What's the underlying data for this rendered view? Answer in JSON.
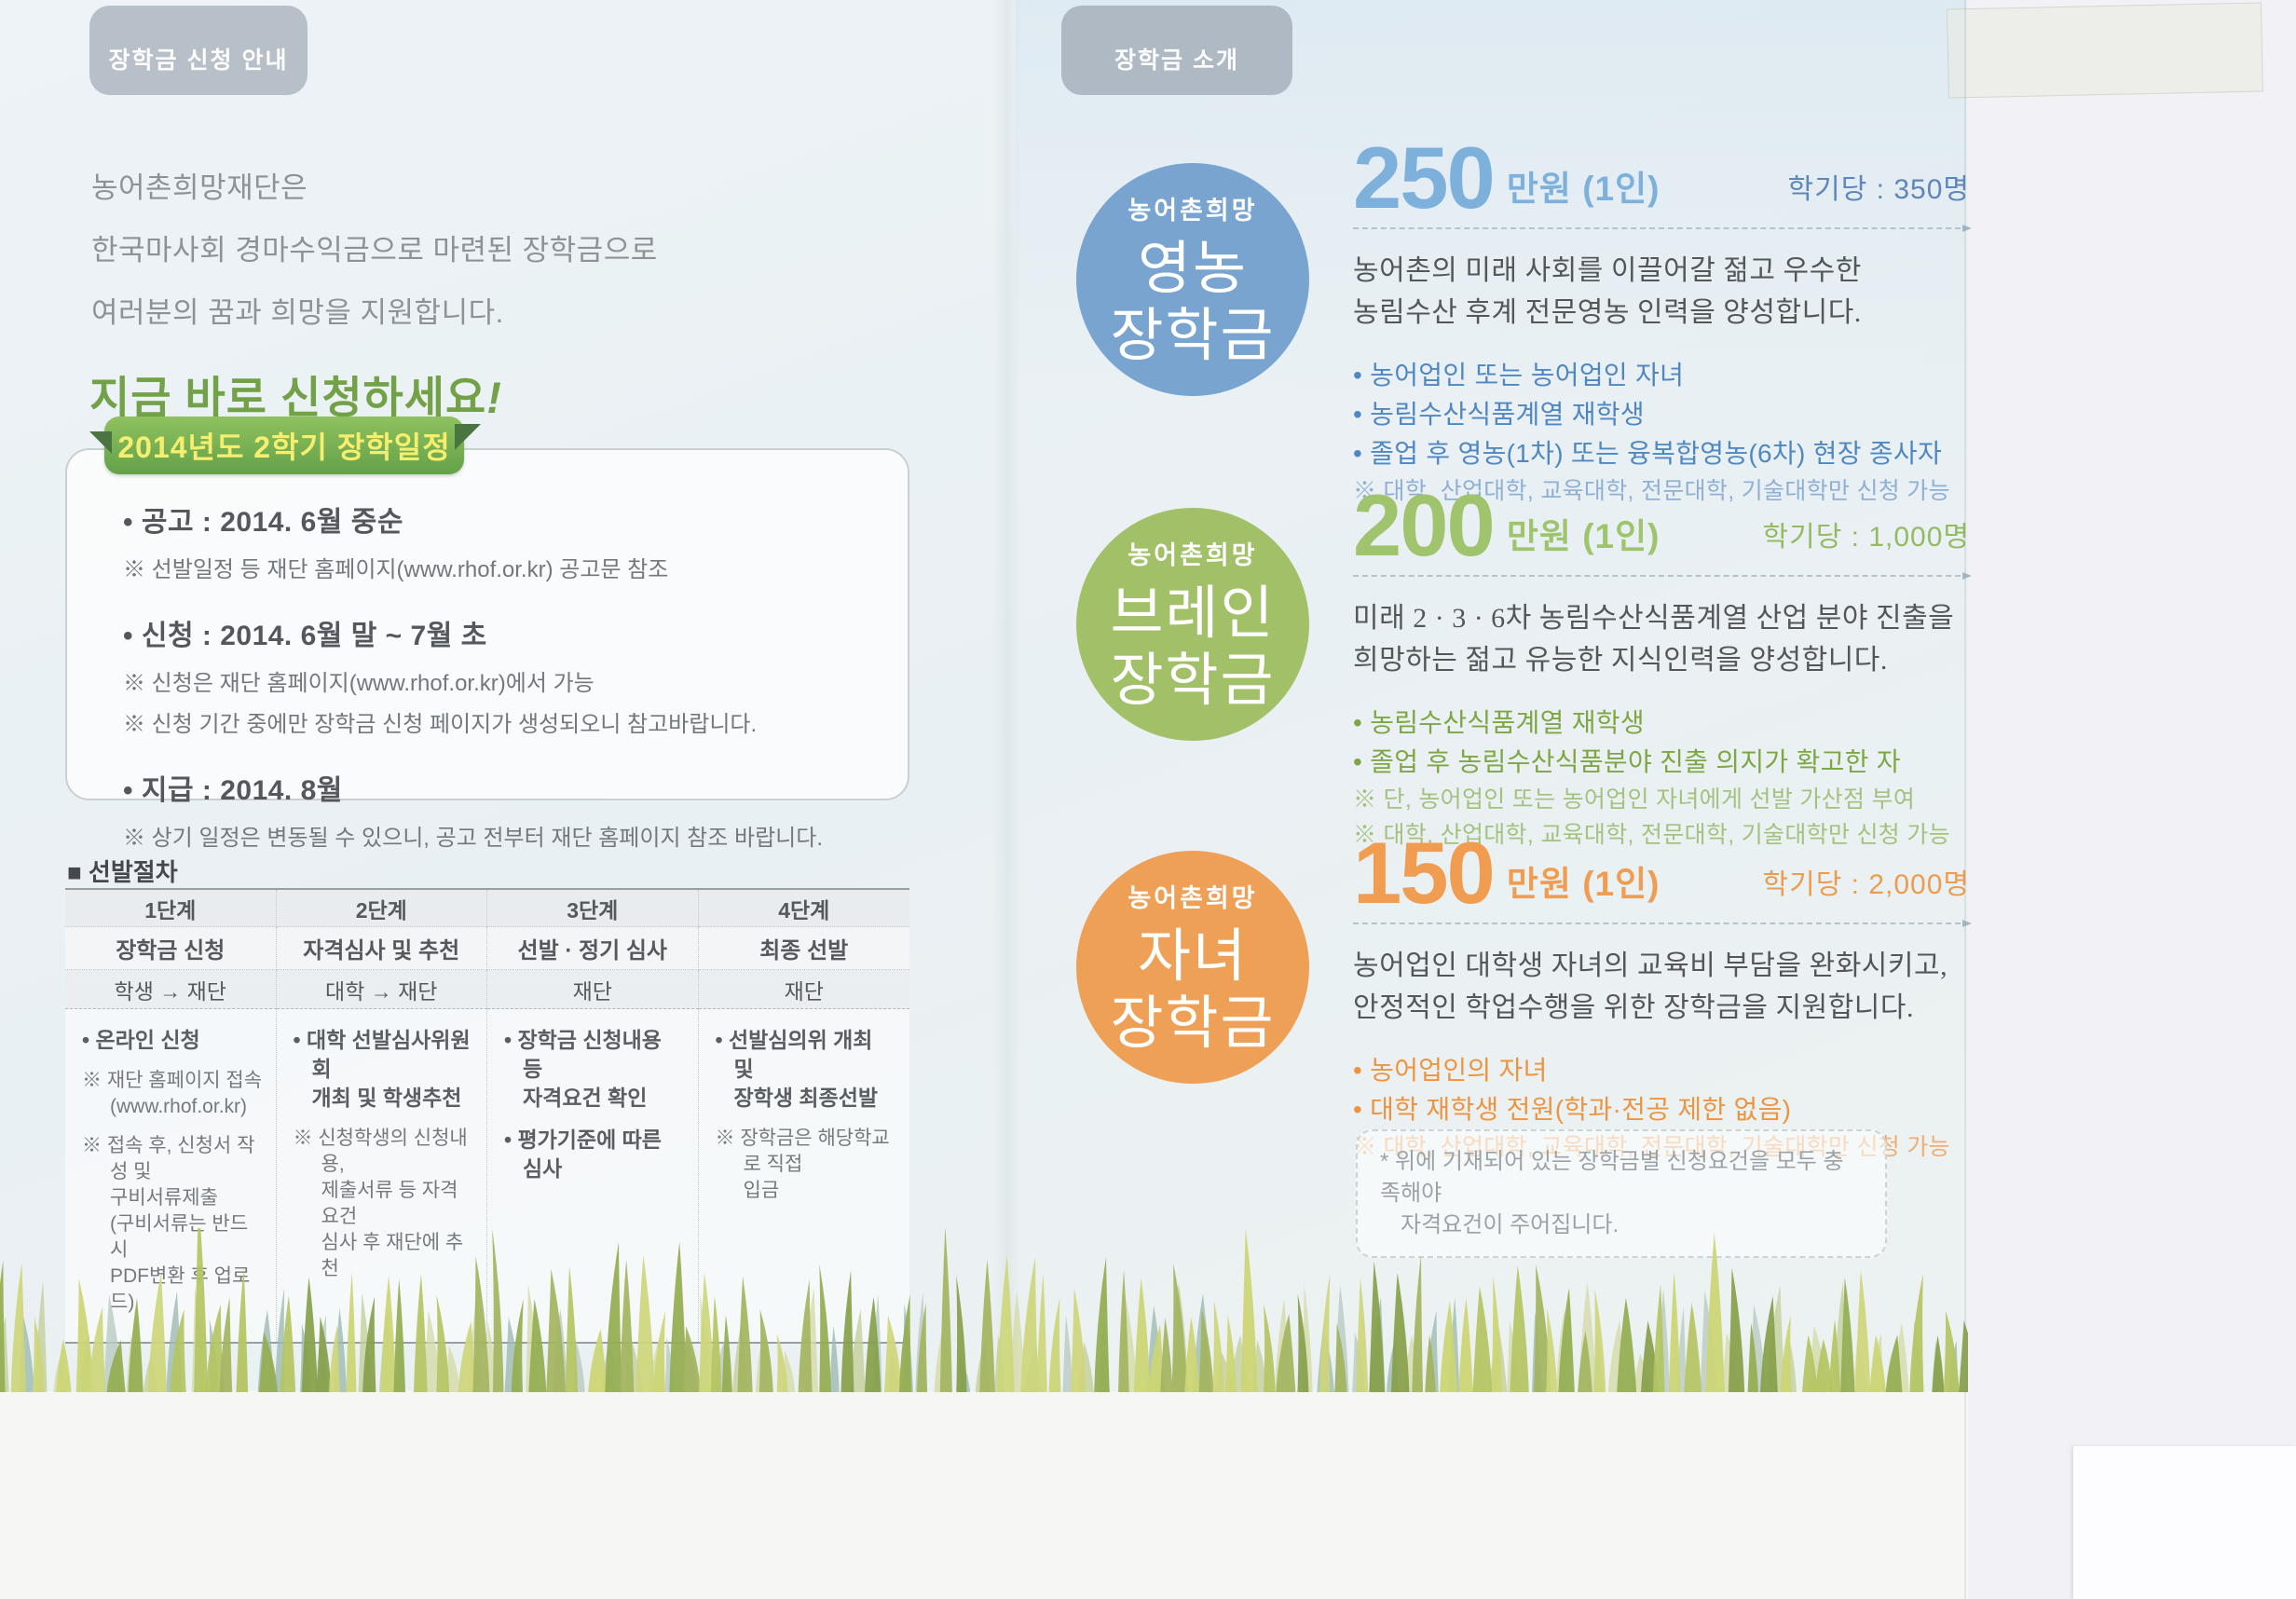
{
  "tabs": {
    "left": "장학금 신청 안내",
    "right": "장학금 소개"
  },
  "intro": {
    "line1": "농어촌희망재단은",
    "line2": "한국마사회 경마수익금으로 마련된 장학금으로",
    "line3": "여러분의 꿈과 희망을 지원합니다.",
    "cta": "지금 바로 신청하세요",
    "cta_bang": "!"
  },
  "schedule": {
    "ribbon": "2014년도 2학기 장학일정",
    "item1_title": "• 공고 : 2014. 6월 중순",
    "item1_note": "※ 선발일정 등 재단 홈페이지(www.rhof.or.kr) 공고문 참조",
    "item2_title": "• 신청 : 2014. 6월 말 ~ 7월 초",
    "item2_note1": "※ 신청은 재단 홈페이지(www.rhof.or.kr)에서 가능",
    "item2_note2": "※ 신청 기간 중에만 장학금 신청 페이지가 생성되오니 참고바랍니다.",
    "item3_title": "• 지급 : 2014. 8월",
    "item3_note": "※ 상기 일정은 변동될 수 있으니, 공고 전부터 재단 홈페이지 참조 바랍니다."
  },
  "procedure": {
    "heading": "■ 선발절차",
    "steps": [
      "1단계",
      "2단계",
      "3단계",
      "4단계"
    ],
    "titles": [
      "장학금 신청",
      "자격심사 및 추천",
      "선발 · 정기 심사",
      "최종 선발"
    ],
    "actors": [
      "학생 → 재단",
      "대학 → 재단",
      "재단",
      "재단"
    ],
    "col1": {
      "main": "• 온라인 신청",
      "sub1": "※ 재단 홈페이지 접속\n(www.rhof.or.kr)",
      "sub2": "※ 접속 후, 신청서 작성 및\n구비서류제출\n(구비서류는 반드시\nPDF변환 후 업로드)"
    },
    "col2": {
      "main": "• 대학 선발심사위원회\n개최 및 학생추천",
      "sub1": "※ 신청학생의 신청내용,\n제출서류 등 자격요건\n심사 후 재단에 추천"
    },
    "col3": {
      "main": "• 장학금 신청내용 등\n자격요건 확인",
      "main2": "• 평가기준에 따른 심사"
    },
    "col4": {
      "main": "• 선발심의위 개최 및\n장학생 최종선발",
      "sub1": "※ 장학금은 해당학교로 직접\n입금"
    }
  },
  "sections": [
    {
      "circle_small": "농어촌희망",
      "circle_big1": "영농",
      "circle_big2": "장학금",
      "color": "#78a4cf",
      "amount": "250",
      "unit": "만원 (1인)",
      "quota": "학기당 : 350명",
      "desc": "농어촌의 미래 사회를 이끌어갈 젊고 우수한\n농림수산 후계 전문영농 인력을 양성합니다.",
      "b1": "• 농어업인 또는 농어업인 자녀",
      "b2": "• 농림수산식품계열 재학생",
      "b3": "• 졸업 후 영농(1차) 또는 융복합영농(6차) 현장 종사자",
      "n1": "※ 대학, 산업대학, 교육대학, 전문대학, 기술대학만 신청 가능"
    },
    {
      "circle_small": "농어촌희망",
      "circle_big1": "브레인",
      "circle_big2": "장학금",
      "color": "#a2c068",
      "amount": "200",
      "unit": "만원 (1인)",
      "quota": "학기당 : 1,000명",
      "desc": "미래 2 · 3 · 6차 농림수산식품계열 산업 분야 진출을\n희망하는 젊고 유능한 지식인력을 양성합니다.",
      "b1": "• 농림수산식품계열 재학생",
      "b2": "• 졸업 후 농림수산식품분야 진출 의지가 확고한 자",
      "n1": "※ 단, 농어업인 또는 농어업인 자녀에게 선발 가산점 부여",
      "n2": "※ 대학, 산업대학, 교육대학, 전문대학, 기술대학만 신청 가능"
    },
    {
      "circle_small": "농어촌희망",
      "circle_big1": "자녀",
      "circle_big2": "장학금",
      "color": "#efa057",
      "amount": "150",
      "unit": "만원 (1인)",
      "quota": "학기당 : 2,000명",
      "desc": "농어업인 대학생 자녀의 교육비 부담을 완화시키고,\n안정적인 학업수행을 위한 장학금을 지원합니다.",
      "b1": "• 농어업인의 자녀",
      "b2": "• 대학 재학생 전원(학과·전공 제한 없음)",
      "n1": "※ 대학, 산업대학, 교육대학, 전문대학, 기술대학만 신청 가능"
    }
  ],
  "footnote": {
    "line1": "* 위에 기재되어 있는 장학금별 신청요건을 모두 충족해야",
    "line2": "자격요건이 주어집니다."
  }
}
